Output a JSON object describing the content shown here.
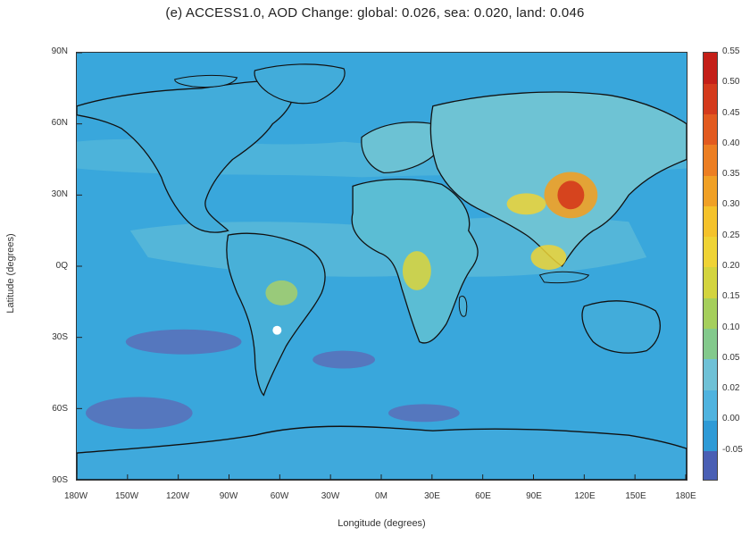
{
  "figure": {
    "title": "(e) ACCESS1.0, AOD Change: global: 0.026, sea: 0.020, land: 0.046",
    "xlabel": "Longitude (degrees)",
    "ylabel": "Latitude (degrees)",
    "xticks": [
      "180W",
      "150W",
      "120W",
      "90W",
      "60W",
      "30W",
      "0M",
      "30E",
      "60E",
      "90E",
      "120E",
      "150E",
      "180E"
    ],
    "yticks": [
      "90N",
      "60N",
      "30N",
      "0Q",
      "30S",
      "60S",
      "90S"
    ],
    "colorbar": {
      "labels": [
        "-0.05",
        "0.00",
        "0.02",
        "0.05",
        "0.10",
        "0.15",
        "0.20",
        "0.25",
        "0.30",
        "0.35",
        "0.40",
        "0.45",
        "0.50",
        "0.55"
      ],
      "colors": [
        "#4a5fb4",
        "#2e9ad6",
        "#4fb3df",
        "#6fc1d6",
        "#83c98c",
        "#a5cf5c",
        "#d3d43e",
        "#efd335",
        "#f4c22b",
        "#f0a025",
        "#ec7e22",
        "#e25a1f",
        "#d43a1c",
        "#c41f18"
      ]
    }
  },
  "legend_colors": {
    "ocean_background": "#39a7dc",
    "coastline": "#111111"
  }
}
